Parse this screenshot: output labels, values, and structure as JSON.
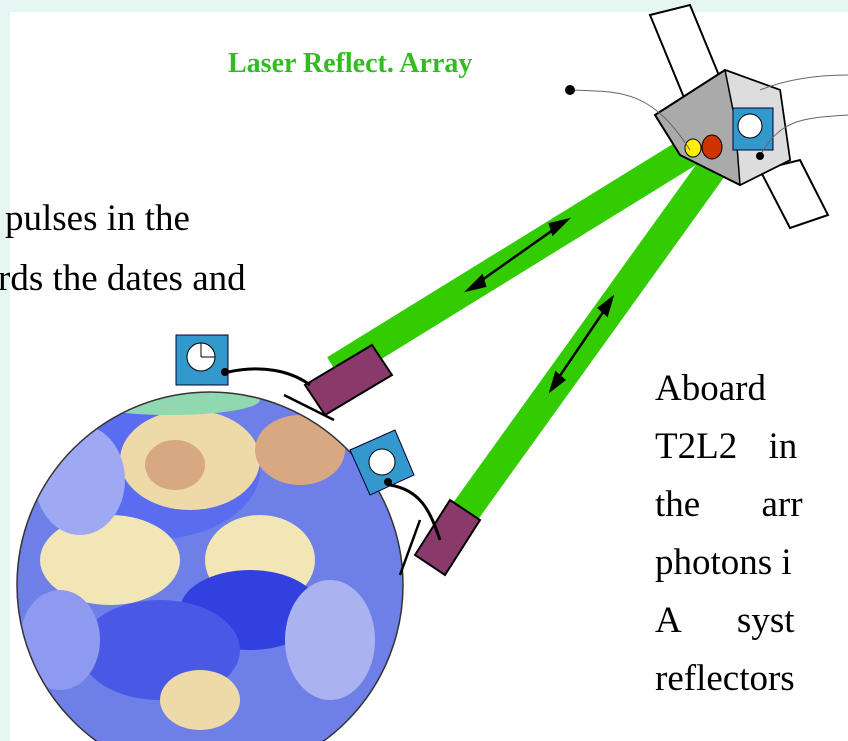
{
  "labels": {
    "array": "Laser Reflect. Array"
  },
  "left_text": {
    "lines": [
      "pulses in the",
      "rds the dates and"
    ]
  },
  "right_text": {
    "lines": [
      "Aboard",
      "T2L2 in",
      "the arr",
      "photons i",
      "A syst",
      "reflectors"
    ]
  }
}
